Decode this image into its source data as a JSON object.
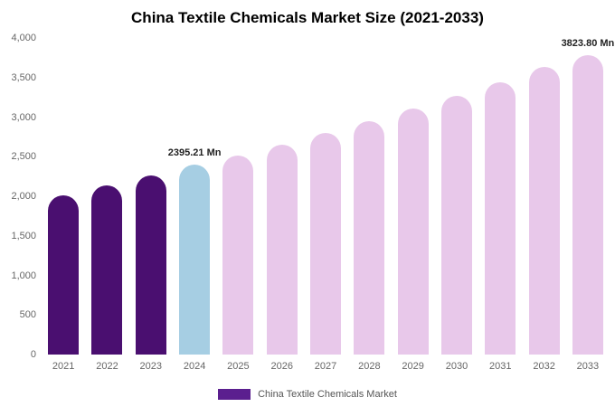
{
  "title": "China Textile Chemicals Market Size (2021-2033)",
  "legend": {
    "label": "China Textile Chemicals Market",
    "swatch_color": "#5b1f8f"
  },
  "colors": {
    "historical_bar": "#4a0f70",
    "current_bar": "#a6cee3",
    "forecast_bar": "#e8c8ea"
  },
  "chart_data": {
    "type": "bar",
    "title": "China Textile Chemicals Market Size (2021-2033)",
    "xlabel": "",
    "ylabel": "",
    "ylim": [
      0,
      4000
    ],
    "grid": false,
    "legend_position": "bottom",
    "legend_entries": [
      "China Textile Chemicals Market"
    ],
    "categories": [
      "2021",
      "2022",
      "2023",
      "2024",
      "2025",
      "2026",
      "2027",
      "2028",
      "2029",
      "2030",
      "2031",
      "2032",
      "2033"
    ],
    "values": [
      2015,
      2135,
      2260,
      2395.21,
      2520,
      2655,
      2800,
      2950,
      3105,
      3270,
      3445,
      3630,
      3823.8
    ],
    "bar_colors": [
      "#4a0f70",
      "#4a0f70",
      "#4a0f70",
      "#a6cee3",
      "#e8c8ea",
      "#e8c8ea",
      "#e8c8ea",
      "#e8c8ea",
      "#e8c8ea",
      "#e8c8ea",
      "#e8c8ea",
      "#e8c8ea",
      "#e8c8ea"
    ],
    "ytick_labels": [
      "4,000",
      "3,500",
      "3,000",
      "2,500",
      "2,000",
      "1,500",
      "1,000",
      "500",
      "0"
    ],
    "annotations": [
      {
        "index": 3,
        "text": "2395.21 Mn"
      },
      {
        "index": 12,
        "text": "3823.80 Mn"
      }
    ]
  }
}
